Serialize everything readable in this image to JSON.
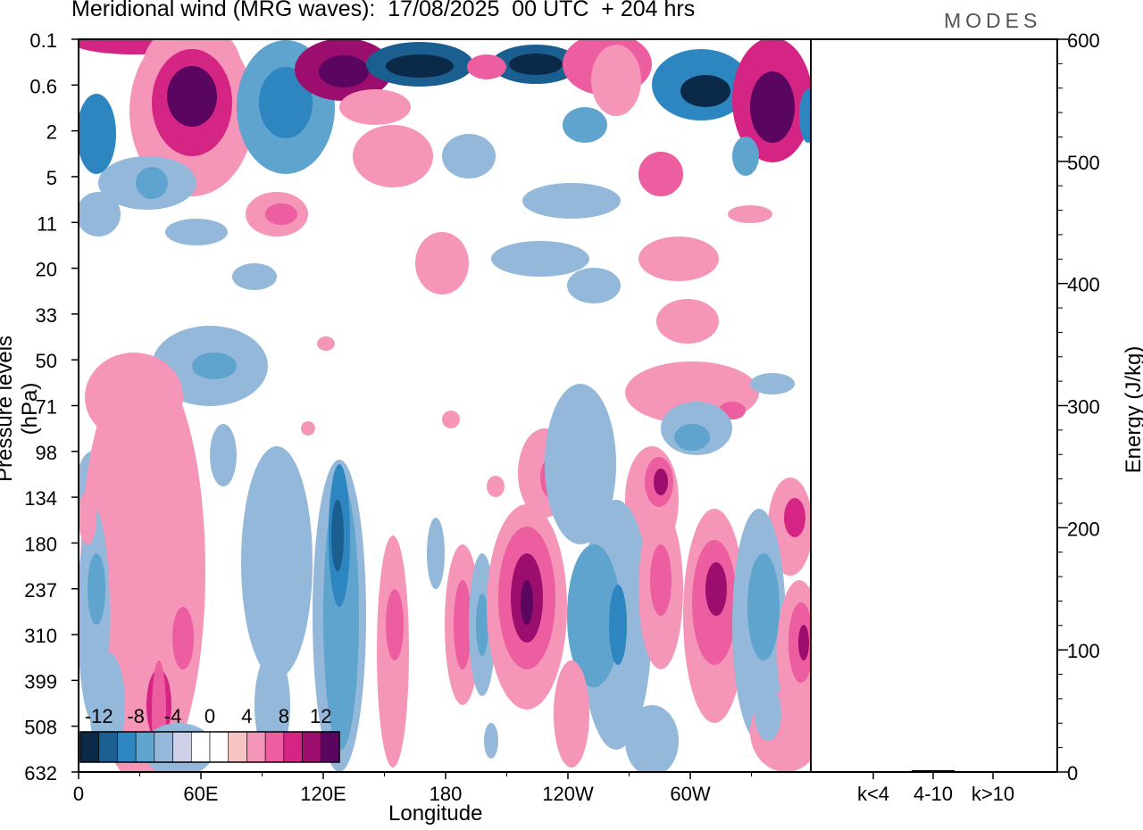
{
  "header": {
    "title": "Meridional wind (MRG waves):  17/08/2025  00 UTC  + 204 hrs",
    "logo": "MODES"
  },
  "chart_data": {
    "type": "heatmap",
    "title": "Meridional wind (MRG waves):  17/08/2025  00 UTC  + 204 hrs",
    "xlabel": "Longitude",
    "ylabel": "Pressure levels (hPa)",
    "x_ticks": [
      "0",
      "60E",
      "120E",
      "180",
      "120W",
      "60W"
    ],
    "y_levels": [
      "0.1",
      "0.6",
      "2",
      "5",
      "11",
      "20",
      "33",
      "50",
      "71",
      "98",
      "134",
      "180",
      "237",
      "310",
      "399",
      "508",
      "632"
    ],
    "colorbar": {
      "labels": [
        "-12",
        "-8",
        "-4",
        "0",
        "4",
        "8",
        "12"
      ],
      "colors": [
        "#0b2a4a",
        "#1a5f8f",
        "#2e86c1",
        "#5fa3cf",
        "#93b8d9",
        "#cdd0e6",
        "#ffffff",
        "#ffffff",
        "#f8c4c4",
        "#f596b8",
        "#ec5ea0",
        "#d42585",
        "#9c0e6e",
        "#5a0560"
      ]
    },
    "bars": {
      "ylabel": "Energy (J/kg)",
      "ylim": [
        0,
        600
      ],
      "y_ticks": [
        "0",
        "100",
        "200",
        "300",
        "400",
        "500",
        "600"
      ],
      "categories": [
        "k<4",
        "4-10",
        "k>10"
      ],
      "values": [
        0.5,
        1.5,
        0.3
      ]
    }
  }
}
